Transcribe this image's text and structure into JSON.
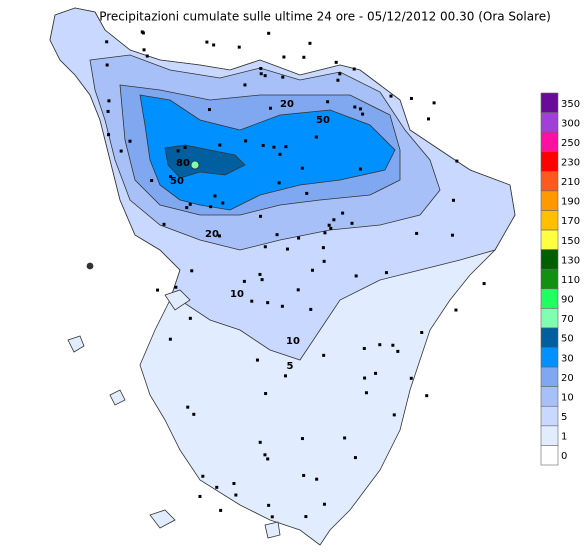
{
  "title": "Precipitazioni cumulate sulle ultime 24 ore - 05/12/2012 00.30 (Ora Solare)",
  "legend": {
    "entries": [
      {
        "label": 350,
        "color": "#6a0a9a"
      },
      {
        "label": 300,
        "color": "#a040d8"
      },
      {
        "label": 250,
        "color": "#ff10a0"
      },
      {
        "label": 230,
        "color": "#ff0000"
      },
      {
        "label": 210,
        "color": "#ff5a1e"
      },
      {
        "label": 190,
        "color": "#ff9900"
      },
      {
        "label": 170,
        "color": "#ffc000"
      },
      {
        "label": 150,
        "color": "#ffff40"
      },
      {
        "label": 130,
        "color": "#006000"
      },
      {
        "label": 110,
        "color": "#129012"
      },
      {
        "label": 90,
        "color": "#20ff60"
      },
      {
        "label": 70,
        "color": "#80ffb0"
      },
      {
        "label": 50,
        "color": "#005f9f"
      },
      {
        "label": 30,
        "color": "#0090ff"
      },
      {
        "label": 20,
        "color": "#80a8f0"
      },
      {
        "label": 10,
        "color": "#a8c0f8"
      },
      {
        "label": 5,
        "color": "#c8d8ff"
      },
      {
        "label": 1,
        "color": "#e2ecff"
      },
      {
        "label": 0,
        "color": "#ffffff"
      }
    ]
  },
  "map_labels": [
    "20",
    "50",
    "80",
    "50",
    "20",
    "10",
    "10",
    "5"
  ]
}
